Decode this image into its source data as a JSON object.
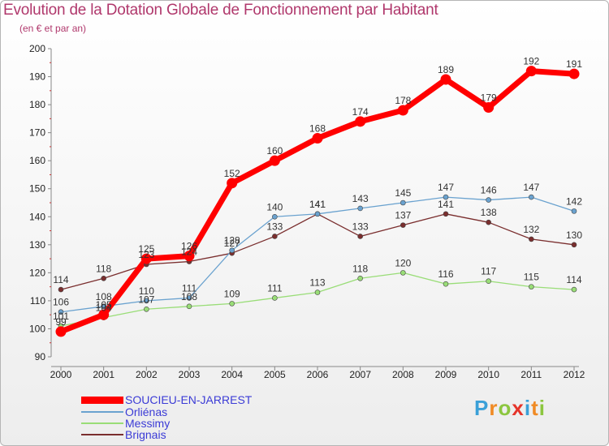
{
  "title": "Evolution de la Dotation Globale de Fonctionnement par Habitant",
  "subtitle": "(en € et par an)",
  "logo": "Proxiti",
  "chart_data": {
    "type": "line",
    "title": "Evolution de la Dotation Globale de Fonctionnement par Habitant",
    "ylabel": "(en € et par an)",
    "xlabel": "",
    "ylim": [
      90,
      200
    ],
    "yticks": [
      90,
      100,
      110,
      120,
      130,
      140,
      150,
      160,
      170,
      180,
      190,
      200
    ],
    "categories": [
      "2000",
      "2001",
      "2002",
      "2003",
      "2004",
      "2005",
      "2006",
      "2007",
      "2008",
      "2009",
      "2010",
      "2011",
      "2012"
    ],
    "grid": false,
    "legend_position": "bottom-left",
    "series": [
      {
        "name": "SOUCIEU-EN-JARREST",
        "color": "#ff0000",
        "values": [
          99,
          105,
          125,
          126,
          152,
          160,
          168,
          174,
          178,
          189,
          179,
          192,
          191
        ],
        "labels": [
          "99",
          "105",
          "125",
          "126",
          "152",
          "160",
          "168",
          "174",
          "178",
          "189",
          "179",
          "192",
          "191"
        ]
      },
      {
        "name": "Orliénas",
        "color": "#6aa2cf",
        "values": [
          106,
          108,
          110,
          111,
          128,
          140,
          141,
          143,
          145,
          147,
          146,
          147,
          142
        ],
        "labels": [
          "106",
          "108",
          "110",
          "111",
          "128",
          "140",
          "141",
          "143",
          "145",
          "147",
          "146",
          "147",
          "142"
        ]
      },
      {
        "name": "Messimy",
        "color": "#99dd77",
        "values": [
          101,
          104,
          107,
          108,
          109,
          111,
          113,
          118,
          120,
          116,
          117,
          115,
          114
        ],
        "labels": [
          "101",
          "104",
          "107",
          "108",
          "109",
          "111",
          "113",
          "118",
          "120",
          "116",
          "117",
          "115",
          "114"
        ]
      },
      {
        "name": "Brignais",
        "color": "#7a2e2e",
        "values": [
          114,
          118,
          123,
          124,
          127,
          133,
          141,
          133,
          137,
          141,
          138,
          132,
          130
        ],
        "labels": [
          "114",
          "118",
          "123",
          "124",
          "127",
          "133",
          "141",
          "133",
          "137",
          "141",
          "138",
          "132",
          "130"
        ]
      }
    ]
  }
}
